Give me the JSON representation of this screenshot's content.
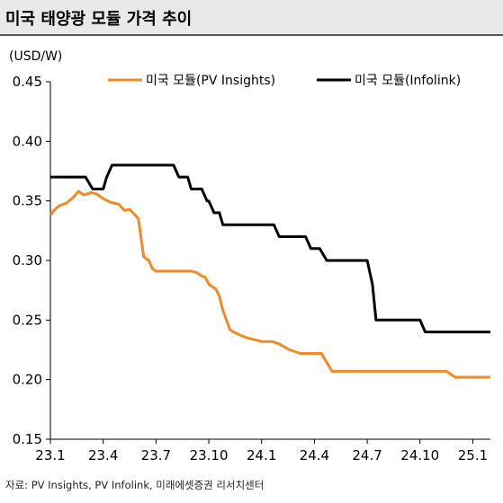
{
  "title": "미국 태양광 모듈 가격 추이",
  "source": "자료: PV Insights, PV Infolink, 미래에셋증권 리서치센터",
  "chart_data": {
    "type": "line",
    "unit_label": "(USD/W)",
    "ylim": [
      0.15,
      0.45
    ],
    "yticks": [
      "0.45",
      "0.40",
      "0.35",
      "0.30",
      "0.25",
      "0.20",
      "0.15"
    ],
    "ytick_values": [
      0.45,
      0.4,
      0.35,
      0.3,
      0.25,
      0.2,
      0.15
    ],
    "xlim": [
      0,
      25
    ],
    "xticks": [
      "23.1",
      "23.4",
      "23.7",
      "23.10",
      "24.1",
      "24.4",
      "24.7",
      "24.10",
      "25.1"
    ],
    "xtick_values": [
      0,
      3,
      6,
      9,
      12,
      15,
      18,
      21,
      24
    ],
    "legend_position": "top",
    "series": [
      {
        "name": "미국 모듈(PV Insights)",
        "color": "#f08a24",
        "x": [
          0,
          0.2,
          0.5,
          0.9,
          1.3,
          1.6,
          1.9,
          2.3,
          2.6,
          3.0,
          3.4,
          3.9,
          4.2,
          4.5,
          4.7,
          5.0,
          5.3,
          5.6,
          5.8,
          6.0,
          6.2,
          6.4,
          7.0,
          8.0,
          8.3,
          8.6,
          8.8,
          9.0,
          9.4,
          9.6,
          9.8,
          10.2,
          10.4,
          11.0,
          11.2,
          12.0,
          12.6,
          13.0,
          13.6,
          14.2,
          14.8,
          15.0,
          15.2,
          15.4,
          16.0,
          17.0,
          18.0,
          19.0,
          20.0,
          21.0,
          22.0,
          22.5,
          23.0,
          23.6,
          25.0
        ],
        "y": [
          0.338,
          0.342,
          0.346,
          0.348,
          0.353,
          0.358,
          0.355,
          0.357,
          0.356,
          0.352,
          0.349,
          0.347,
          0.342,
          0.343,
          0.34,
          0.335,
          0.303,
          0.3,
          0.293,
          0.291,
          0.291,
          0.291,
          0.291,
          0.291,
          0.29,
          0.287,
          0.286,
          0.28,
          0.276,
          0.27,
          0.258,
          0.242,
          0.24,
          0.236,
          0.235,
          0.232,
          0.232,
          0.23,
          0.225,
          0.222,
          0.222,
          0.222,
          0.222,
          0.222,
          0.207,
          0.207,
          0.207,
          0.207,
          0.207,
          0.207,
          0.207,
          0.207,
          0.202,
          0.202,
          0.202
        ]
      },
      {
        "name": "미국 모듈(Infolink)",
        "color": "#000000",
        "x": [
          0,
          1.5,
          2.0,
          2.4,
          2.6,
          3.0,
          3.2,
          3.5,
          3.8,
          7.0,
          7.3,
          7.5,
          7.8,
          8.0,
          8.3,
          8.6,
          8.9,
          9.0,
          9.3,
          9.6,
          9.8,
          10.0,
          10.3,
          12.7,
          13.0,
          14.5,
          14.8,
          15.3,
          15.7,
          18.0,
          18.3,
          18.5,
          18.7,
          21.0,
          21.3,
          25.0
        ],
        "y": [
          0.37,
          0.37,
          0.37,
          0.36,
          0.36,
          0.36,
          0.37,
          0.38,
          0.38,
          0.38,
          0.37,
          0.37,
          0.37,
          0.36,
          0.36,
          0.36,
          0.35,
          0.35,
          0.34,
          0.34,
          0.33,
          0.33,
          0.33,
          0.33,
          0.32,
          0.32,
          0.31,
          0.31,
          0.3,
          0.3,
          0.28,
          0.25,
          0.25,
          0.25,
          0.24,
          0.24
        ]
      }
    ]
  }
}
